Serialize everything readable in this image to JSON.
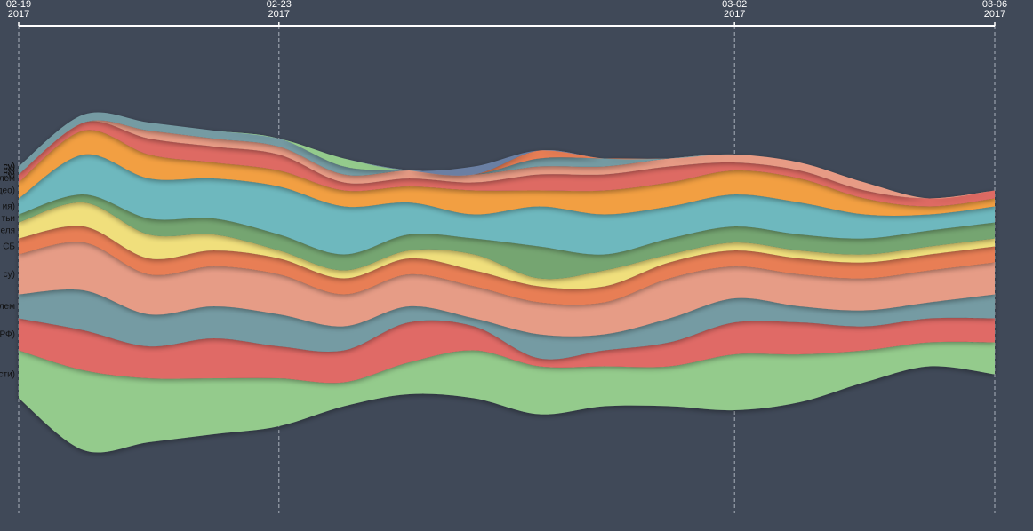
{
  "chart_data": {
    "type": "area",
    "title": "",
    "xlabel": "",
    "ylabel": "",
    "x": [
      "2017-02-19",
      "2017-02-20",
      "2017-02-21",
      "2017-02-22",
      "2017-02-23",
      "2017-02-24",
      "2017-02-25",
      "2017-02-26",
      "2017-02-27",
      "2017-02-28",
      "2017-03-01",
      "2017-03-02",
      "2017-03-03",
      "2017-03-04",
      "2017-03-05",
      "2017-03-06"
    ],
    "x_ticks": [
      {
        "date": "2017-02-19",
        "top": "02-19",
        "bottom": "2017"
      },
      {
        "date": "2017-02-23",
        "top": "02-23",
        "bottom": "2017"
      },
      {
        "date": "2017-03-02",
        "top": "03-02",
        "bottom": "2017"
      },
      {
        "date": "2017-03-06",
        "top": "03-06",
        "bottom": "2017"
      }
    ],
    "xlim": [
      "2017-02-19",
      "2017-03-06"
    ],
    "offset": "silhouette",
    "grid": true,
    "series": [
      {
        "label": "сти)",
        "color": "#94cb8c",
        "values": [
          6,
          10,
          8,
          7,
          6,
          3,
          4,
          6,
          6,
          5,
          5,
          7,
          6,
          4,
          3,
          4
        ]
      },
      {
        "label": "РФ)",
        "color": "#e06b66",
        "values": [
          4,
          5,
          4,
          5,
          4,
          4,
          5,
          3,
          1,
          2,
          3,
          4,
          4,
          3,
          3,
          3
        ]
      },
      {
        "label": "лем",
        "color": "#759ba3",
        "values": [
          3,
          5,
          4,
          4,
          4,
          3,
          2,
          1,
          3,
          2,
          3,
          3,
          2,
          2,
          2,
          3
        ]
      },
      {
        "label": "су)",
        "color": "#e69c86",
        "values": [
          5,
          6,
          5,
          5,
          5,
          4,
          4,
          4,
          4,
          4,
          5,
          4,
          4,
          4,
          4,
          4
        ]
      },
      {
        "label": "СБ",
        "color": "#e87e54",
        "values": [
          2,
          2,
          2,
          2,
          2,
          2,
          2,
          2,
          2,
          2,
          2,
          2,
          2,
          2,
          2,
          2
        ]
      },
      {
        "label": "еля",
        "color": "#f0df7b",
        "values": [
          2,
          3,
          3,
          2,
          1,
          1,
          1,
          2,
          1,
          2,
          1,
          1,
          1,
          1,
          1,
          1
        ]
      },
      {
        "label": "тьи",
        "color": "#75a571",
        "values": [
          1,
          1,
          2,
          2,
          2,
          2,
          2,
          2,
          4,
          2,
          2,
          2,
          2,
          2,
          2,
          2
        ]
      },
      {
        "label": "ия)",
        "color": "#6eb8be",
        "values": [
          2,
          5,
          5,
          5,
          6,
          6,
          4,
          3,
          5,
          5,
          4,
          4,
          4,
          3,
          2,
          2
        ]
      },
      {
        "label": "део)",
        "color": "#f29f42",
        "values": [
          2,
          3,
          3,
          2,
          2,
          2,
          2,
          3,
          2,
          3,
          3,
          3,
          3,
          2,
          1,
          1
        ]
      },
      {
        "label": "лем",
        "color": "#de6a64",
        "values": [
          1,
          1,
          2,
          2,
          2,
          1,
          1,
          1,
          2,
          2,
          2,
          1,
          1,
          1,
          1,
          1
        ]
      },
      {
        "label": "су)",
        "color": "#e79b85",
        "values": [
          0,
          0,
          1,
          1,
          1,
          1,
          1,
          1,
          1,
          1,
          1,
          1,
          1,
          1,
          0,
          0
        ]
      },
      {
        "label": "су)",
        "color": "#759ba3",
        "values": [
          1,
          1,
          1,
          1,
          1,
          1,
          0,
          0,
          1,
          1,
          0,
          0,
          0,
          0,
          0,
          0
        ]
      },
      {
        "label": "су)",
        "color": "#94cb8c",
        "values": [
          0,
          0,
          0,
          0,
          0,
          1,
          0,
          0,
          0,
          0,
          0,
          0,
          0,
          0,
          0,
          0
        ]
      },
      {
        "label": "су)",
        "color": "#e87e54",
        "values": [
          0,
          0,
          0,
          0,
          0,
          0,
          0,
          0,
          1,
          0,
          0,
          0,
          0,
          0,
          0,
          0
        ]
      },
      {
        "label": "су)",
        "color": "#6b7fa3",
        "values": [
          0,
          0,
          0,
          0,
          0,
          0,
          0,
          1,
          0,
          0,
          0,
          0,
          0,
          0,
          0,
          0
        ]
      }
    ]
  }
}
